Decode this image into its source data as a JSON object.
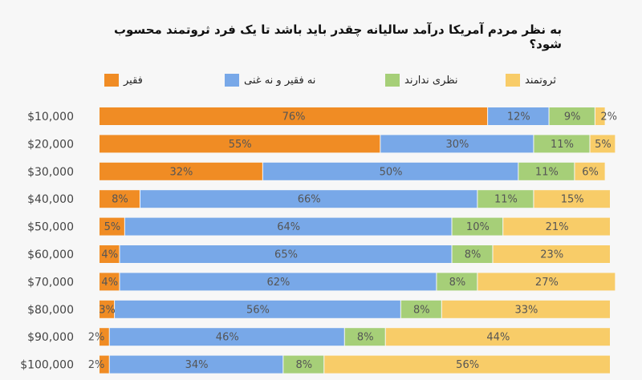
{
  "chart_data": {
    "type": "bar",
    "orientation": "horizontal",
    "stacked": true,
    "title": "به نظر مردم آمریکا درآمد سالیانه چقدر  باید باشد تا یک فرد ثروتمند محسوب شود؟",
    "legend_position": "top",
    "categories": [
      "$10,000",
      "$20,000",
      "$30,000",
      "$40,000",
      "$50,000",
      "$60,000",
      "$70,000",
      "$80,000",
      "$90,000",
      "$100,000"
    ],
    "series": [
      {
        "name": "فقیر",
        "color": "#f08c24",
        "values": [
          76,
          55,
          32,
          8,
          5,
          4,
          4,
          3,
          2,
          2
        ]
      },
      {
        "name": "نه فقیر و نه غنی",
        "color": "#78a8e8",
        "values": [
          12,
          30,
          50,
          66,
          64,
          65,
          62,
          56,
          46,
          34
        ]
      },
      {
        "name": "نظری ندارند",
        "color": "#a6cf78",
        "values": [
          9,
          11,
          11,
          11,
          10,
          8,
          8,
          8,
          8,
          8
        ]
      },
      {
        "name": "ثروتمند",
        "color": "#f8cc68",
        "values": [
          2,
          5,
          6,
          15,
          21,
          23,
          27,
          33,
          44,
          56
        ]
      }
    ],
    "unit": "%"
  }
}
